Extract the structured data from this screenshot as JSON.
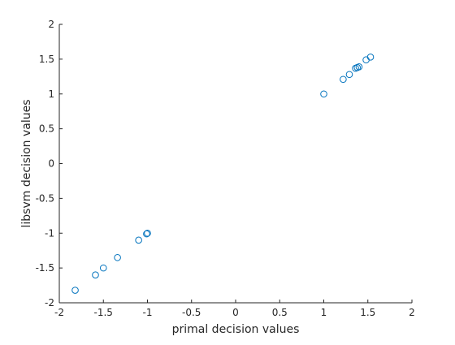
{
  "chart_data": {
    "type": "scatter",
    "title": "",
    "xlabel": "primal decision values",
    "ylabel": "libsvm decision values",
    "xlim": [
      -2,
      2
    ],
    "ylim": [
      -2,
      2
    ],
    "xticks": [
      "-2",
      "-1.5",
      "-1",
      "-0.5",
      "0",
      "0.5",
      "1",
      "1.5",
      "2"
    ],
    "yticks": [
      "-2",
      "-1.5",
      "-1",
      "-0.5",
      "0",
      "0.5",
      "1",
      "1.5",
      "2"
    ],
    "grid": false,
    "marker": "open-circle",
    "series": [
      {
        "color": "#0072bd",
        "points": [
          {
            "x": -1.82,
            "y": -1.82
          },
          {
            "x": -1.59,
            "y": -1.6
          },
          {
            "x": -1.5,
            "y": -1.5
          },
          {
            "x": -1.34,
            "y": -1.35
          },
          {
            "x": -1.1,
            "y": -1.1
          },
          {
            "x": -1.01,
            "y": -1.01
          },
          {
            "x": -1.0,
            "y": -1.0
          },
          {
            "x": 1.0,
            "y": 1.0
          },
          {
            "x": 1.22,
            "y": 1.21
          },
          {
            "x": 1.29,
            "y": 1.28
          },
          {
            "x": 1.36,
            "y": 1.37
          },
          {
            "x": 1.38,
            "y": 1.38
          },
          {
            "x": 1.4,
            "y": 1.39
          },
          {
            "x": 1.48,
            "y": 1.49
          },
          {
            "x": 1.53,
            "y": 1.53
          }
        ]
      }
    ]
  }
}
